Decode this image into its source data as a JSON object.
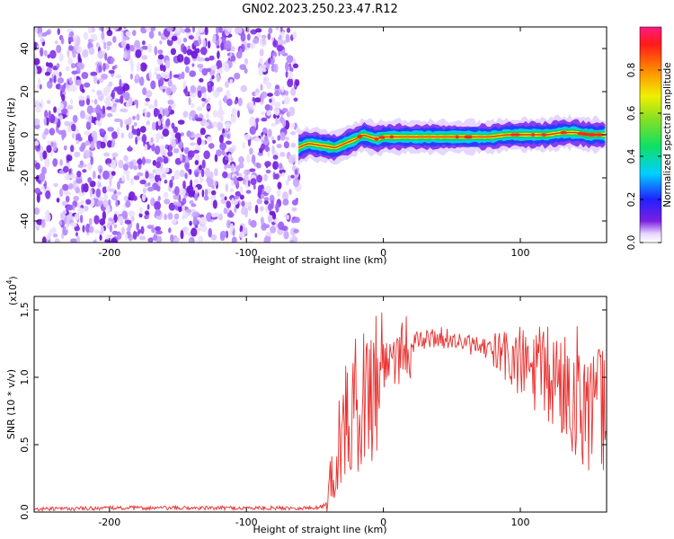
{
  "title": "GN02.2023.250.23.47.R12",
  "colors": {
    "snr_line": "#e8312f",
    "axis": "#000000"
  },
  "chart_data": [
    {
      "type": "heatmap",
      "xlabel": "Height of straight line (km)",
      "ylabel": "Frequency (Hz)",
      "xlim": [
        -255,
        163
      ],
      "ylim": [
        -50,
        50
      ],
      "xticks": [
        -200,
        -100,
        0,
        100
      ],
      "yticks": [
        -40,
        -20,
        0,
        20,
        40
      ],
      "noise_region_x": [
        -255,
        -62
      ],
      "ridge": {
        "x": [
          -62,
          -55,
          -45,
          -35,
          -28,
          -20,
          -15,
          -5,
          0,
          20,
          40,
          60,
          78,
          90,
          100,
          110,
          120,
          130,
          140,
          150,
          163
        ],
        "freq": [
          -6,
          -4,
          -5,
          -6,
          -4,
          -2,
          0,
          -2,
          -1,
          -1,
          -1,
          -1,
          -1,
          0,
          0,
          0,
          0,
          1,
          1,
          0,
          0
        ]
      },
      "colorbar": {
        "label": "Normalized spectral amplitude",
        "range": [
          0,
          1
        ],
        "ticks": [
          "0.0",
          "0.2",
          "0.4",
          "0.6",
          "0.8"
        ]
      }
    },
    {
      "type": "line",
      "series": [
        {
          "x": [
            -255,
            -200,
            -150,
            -100,
            -50,
            -42,
            -40,
            -35,
            -30,
            -25,
            -20,
            -15,
            -10,
            -5,
            0,
            10,
            20,
            30,
            40,
            50,
            60,
            70,
            80,
            90,
            100,
            110,
            120,
            130,
            140,
            150,
            160
          ],
          "values": [
            0.2,
            0.3,
            0.3,
            0.3,
            0.3,
            0.5,
            1.5,
            4,
            6,
            7,
            8,
            8.5,
            9,
            10,
            11,
            12,
            12.5,
            12.8,
            13,
            12.8,
            12.5,
            12.2,
            12,
            11.5,
            11,
            10.5,
            10,
            9.5,
            9,
            8,
            7
          ]
        }
      ],
      "xlabel": "Height of straight line (km)",
      "ylabel": "SNR (10 * v/v)",
      "exponent_label": "(x10",
      "exponent_power": "4",
      "exponent_close": ")",
      "xlim": [
        -255,
        163
      ],
      "ylim": [
        0,
        16
      ],
      "xticks": [
        -200,
        -100,
        0,
        100
      ],
      "yticks": [
        "0.0",
        "0.5",
        "1.0",
        "1.5"
      ],
      "ytick_values": [
        0,
        5,
        10,
        15
      ]
    }
  ]
}
